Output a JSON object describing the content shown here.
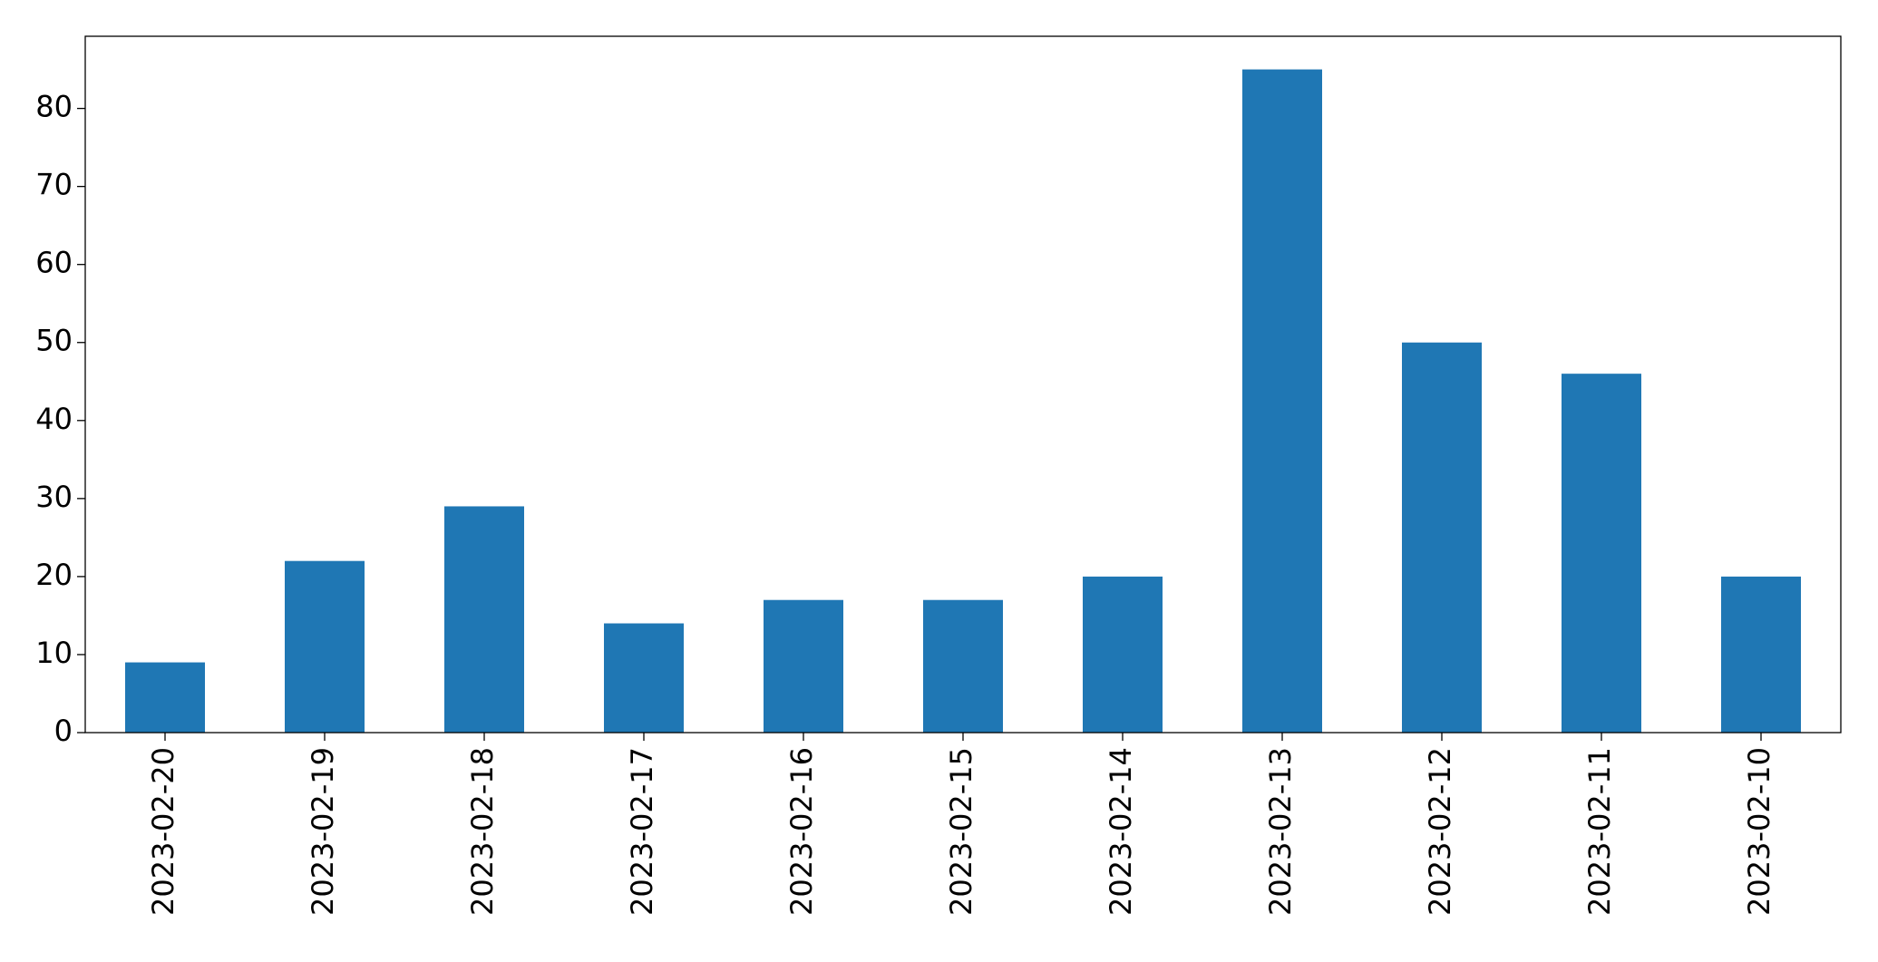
{
  "chart_data": {
    "type": "bar",
    "categories": [
      "2023-02-20",
      "2023-02-19",
      "2023-02-18",
      "2023-02-17",
      "2023-02-16",
      "2023-02-15",
      "2023-02-14",
      "2023-02-13",
      "2023-02-12",
      "2023-02-11",
      "2023-02-10"
    ],
    "values": [
      9,
      22,
      29,
      14,
      17,
      17,
      20,
      85,
      50,
      46,
      20
    ],
    "color": "#1f77b4",
    "ylim": [
      0,
      89.25
    ],
    "yticks": [
      0,
      10,
      20,
      30,
      40,
      50,
      60,
      70,
      80
    ],
    "grid": false
  }
}
